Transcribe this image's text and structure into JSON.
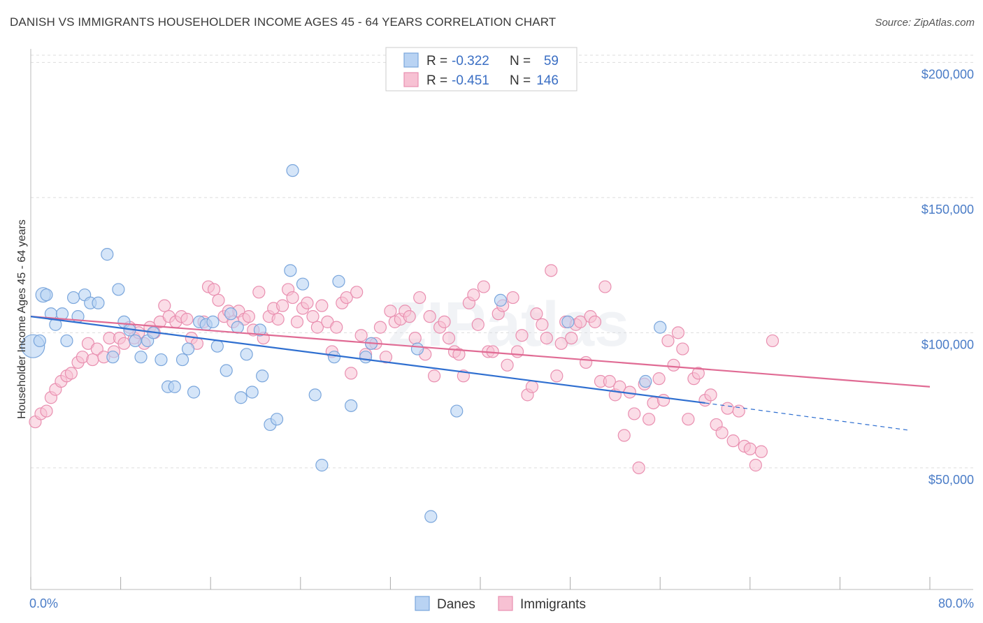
{
  "title": "DANISH VS IMMIGRANTS HOUSEHOLDER INCOME AGES 45 - 64 YEARS CORRELATION CHART",
  "source": "Source: ZipAtlas.com",
  "watermark": "ZIPatlas",
  "legend_top": {
    "rows": [
      {
        "r_label": "R =",
        "r_value": "-0.322",
        "n_label": "N =",
        "n_value": "59"
      },
      {
        "r_label": "R =",
        "r_value": "-0.451",
        "n_label": "N =",
        "n_value": "146"
      }
    ]
  },
  "legend_bottom": [
    "Danes",
    "Immigrants"
  ],
  "colors": {
    "danes_fill": "#b9d3f3",
    "danes_stroke": "#7aa6dc",
    "danes_line": "#2f6fd0",
    "imm_fill": "#f7c1d3",
    "imm_stroke": "#e98fb0",
    "imm_line": "#e06b94",
    "axis_text": "#4a7cc7",
    "grid": "#dddddd"
  },
  "chart_data": {
    "type": "scatter",
    "title": "DANISH VS IMMIGRANTS HOUSEHOLDER INCOME AGES 45 - 64 YEARS CORRELATION CHART",
    "xlabel": "",
    "ylabel": "Householder Income Ages 45 - 64 years",
    "xlim": [
      0,
      80
    ],
    "ylim": [
      5000,
      205000
    ],
    "x_tick_labels": [
      "0.0%",
      "80.0%"
    ],
    "y_ticks": [
      50000,
      100000,
      150000,
      200000
    ],
    "y_tick_labels": [
      "$50,000",
      "$100,000",
      "$150,000",
      "$200,000"
    ],
    "grid": true,
    "legend_position": "top-center",
    "series": [
      {
        "name": "Danes",
        "r": -0.322,
        "n": 59,
        "trend": {
          "x0": 0,
          "y0": 106000,
          "x1": 60,
          "y1": 74000,
          "dashed_to_x": 78,
          "dashed_to_y": 64000
        },
        "points": [
          [
            0.2,
            95000,
            16
          ],
          [
            1.1,
            114000,
            10
          ],
          [
            1.4,
            114000,
            8
          ],
          [
            1.8,
            107000,
            8
          ],
          [
            2.2,
            103000,
            8
          ],
          [
            2.8,
            107000,
            8
          ],
          [
            3.2,
            97000,
            8
          ],
          [
            3.8,
            113000,
            8
          ],
          [
            4.2,
            106000,
            8
          ],
          [
            4.8,
            114000,
            8
          ],
          [
            5.3,
            111000,
            8
          ],
          [
            6.0,
            111000,
            8
          ],
          [
            6.8,
            129000,
            8
          ],
          [
            7.3,
            91000,
            8
          ],
          [
            7.8,
            116000,
            8
          ],
          [
            8.3,
            104000,
            8
          ],
          [
            8.8,
            101000,
            8
          ],
          [
            9.3,
            97000,
            8
          ],
          [
            9.8,
            91000,
            8
          ],
          [
            10.4,
            97000,
            8
          ],
          [
            10.9,
            100000,
            8
          ],
          [
            11.6,
            90000,
            8
          ],
          [
            12.2,
            80000,
            8
          ],
          [
            12.8,
            80000,
            8
          ],
          [
            13.5,
            90000,
            8
          ],
          [
            14.0,
            94000,
            8
          ],
          [
            14.5,
            78000,
            8
          ],
          [
            15.0,
            104000,
            8
          ],
          [
            15.6,
            103000,
            8
          ],
          [
            16.2,
            104000,
            8
          ],
          [
            16.6,
            95000,
            8
          ],
          [
            17.4,
            86000,
            8
          ],
          [
            17.8,
            107000,
            8
          ],
          [
            18.4,
            102000,
            8
          ],
          [
            18.7,
            76000,
            8
          ],
          [
            19.2,
            92000,
            8
          ],
          [
            19.7,
            78000,
            8
          ],
          [
            20.4,
            101000,
            8
          ],
          [
            20.6,
            84000,
            8
          ],
          [
            21.3,
            66000,
            8
          ],
          [
            21.9,
            68000,
            8
          ],
          [
            23.1,
            123000,
            8
          ],
          [
            23.3,
            160000,
            8
          ],
          [
            24.2,
            118000,
            8
          ],
          [
            25.3,
            77000,
            8
          ],
          [
            25.9,
            51000,
            8
          ],
          [
            27.0,
            91000,
            8
          ],
          [
            27.4,
            119000,
            8
          ],
          [
            28.5,
            73000,
            8
          ],
          [
            29.8,
            91000,
            8
          ],
          [
            30.3,
            96000,
            8
          ],
          [
            34.4,
            94000,
            8
          ],
          [
            35.6,
            32000,
            8
          ],
          [
            37.9,
            71000,
            8
          ],
          [
            41.8,
            112000,
            8
          ],
          [
            47.8,
            104000,
            8
          ],
          [
            54.7,
            82000,
            8
          ],
          [
            56.0,
            102000,
            8
          ],
          [
            0.8,
            97000,
            8
          ]
        ]
      },
      {
        "name": "Immigrants",
        "r": -0.451,
        "n": 146,
        "trend": {
          "x0": 0,
          "y0": 106000,
          "x1": 80,
          "y1": 80000
        },
        "points": [
          [
            0.4,
            67000
          ],
          [
            0.9,
            70000
          ],
          [
            1.4,
            71000
          ],
          [
            1.8,
            76000
          ],
          [
            2.2,
            79000
          ],
          [
            2.7,
            82000
          ],
          [
            3.2,
            84000
          ],
          [
            3.6,
            85000
          ],
          [
            4.2,
            89000
          ],
          [
            4.6,
            91000
          ],
          [
            5.1,
            96000
          ],
          [
            5.5,
            90000
          ],
          [
            5.9,
            94000
          ],
          [
            6.5,
            91000
          ],
          [
            7.0,
            98000
          ],
          [
            7.4,
            93000
          ],
          [
            7.9,
            98000
          ],
          [
            8.3,
            96000
          ],
          [
            8.8,
            102000
          ],
          [
            9.2,
            98000
          ],
          [
            9.6,
            100000
          ],
          [
            10.1,
            96000
          ],
          [
            10.6,
            102000
          ],
          [
            11.0,
            100000
          ],
          [
            11.5,
            104000
          ],
          [
            11.9,
            110000
          ],
          [
            12.3,
            106000
          ],
          [
            12.9,
            104000
          ],
          [
            13.4,
            106000
          ],
          [
            13.9,
            105000
          ],
          [
            14.3,
            98000
          ],
          [
            14.8,
            96000
          ],
          [
            15.4,
            104000
          ],
          [
            15.8,
            117000
          ],
          [
            16.3,
            116000
          ],
          [
            16.7,
            112000
          ],
          [
            17.2,
            106000
          ],
          [
            17.6,
            108000
          ],
          [
            18.0,
            104000
          ],
          [
            18.5,
            108000
          ],
          [
            19.0,
            105000
          ],
          [
            19.4,
            106000
          ],
          [
            19.8,
            101000
          ],
          [
            20.3,
            115000
          ],
          [
            20.7,
            98000
          ],
          [
            21.2,
            106000
          ],
          [
            21.6,
            109000
          ],
          [
            22.0,
            105000
          ],
          [
            22.4,
            110000
          ],
          [
            22.9,
            116000
          ],
          [
            23.3,
            113000
          ],
          [
            23.7,
            104000
          ],
          [
            24.2,
            109000
          ],
          [
            24.6,
            111000
          ],
          [
            25.1,
            106000
          ],
          [
            25.5,
            102000
          ],
          [
            25.9,
            110000
          ],
          [
            26.4,
            104000
          ],
          [
            26.8,
            93000
          ],
          [
            27.2,
            102000
          ],
          [
            27.7,
            111000
          ],
          [
            28.1,
            113000
          ],
          [
            28.5,
            85000
          ],
          [
            29.0,
            115000
          ],
          [
            29.4,
            99000
          ],
          [
            29.8,
            92000
          ],
          [
            30.3,
            96000
          ],
          [
            30.7,
            96000
          ],
          [
            31.1,
            102000
          ],
          [
            31.6,
            91000
          ],
          [
            32.0,
            108000
          ],
          [
            32.4,
            104000
          ],
          [
            32.9,
            105000
          ],
          [
            33.3,
            108000
          ],
          [
            33.7,
            106000
          ],
          [
            34.2,
            98000
          ],
          [
            34.6,
            113000
          ],
          [
            35.1,
            92000
          ],
          [
            35.5,
            106000
          ],
          [
            35.9,
            84000
          ],
          [
            36.4,
            102000
          ],
          [
            36.8,
            104000
          ],
          [
            37.2,
            98000
          ],
          [
            37.7,
            93000
          ],
          [
            38.1,
            92000
          ],
          [
            38.5,
            84000
          ],
          [
            39.0,
            111000
          ],
          [
            39.4,
            114000
          ],
          [
            39.8,
            103000
          ],
          [
            40.3,
            117000
          ],
          [
            40.7,
            93000
          ],
          [
            41.1,
            93000
          ],
          [
            41.6,
            107000
          ],
          [
            42.0,
            110000
          ],
          [
            42.4,
            88000
          ],
          [
            42.9,
            113000
          ],
          [
            43.3,
            93000
          ],
          [
            43.7,
            99000
          ],
          [
            44.2,
            77000
          ],
          [
            44.6,
            80000
          ],
          [
            45.0,
            107000
          ],
          [
            45.5,
            103000
          ],
          [
            45.9,
            98000
          ],
          [
            46.3,
            123000
          ],
          [
            46.8,
            84000
          ],
          [
            47.2,
            96000
          ],
          [
            47.6,
            104000
          ],
          [
            48.1,
            98000
          ],
          [
            48.5,
            103000
          ],
          [
            48.9,
            104000
          ],
          [
            49.4,
            89000
          ],
          [
            49.8,
            106000
          ],
          [
            50.2,
            104000
          ],
          [
            50.7,
            82000
          ],
          [
            51.1,
            117000
          ],
          [
            51.5,
            82000
          ],
          [
            52.0,
            77000
          ],
          [
            52.4,
            80000
          ],
          [
            52.8,
            62000
          ],
          [
            53.3,
            78000
          ],
          [
            53.7,
            70000
          ],
          [
            54.1,
            50000
          ],
          [
            54.6,
            81000
          ],
          [
            55.0,
            68000
          ],
          [
            55.4,
            74000
          ],
          [
            55.9,
            83000
          ],
          [
            56.3,
            75000
          ],
          [
            56.7,
            97000
          ],
          [
            57.2,
            88000
          ],
          [
            57.6,
            100000
          ],
          [
            58.0,
            94000
          ],
          [
            58.5,
            68000
          ],
          [
            59.0,
            83000
          ],
          [
            59.4,
            85000
          ],
          [
            60.0,
            75000
          ],
          [
            60.5,
            77000
          ],
          [
            61.0,
            66000
          ],
          [
            61.5,
            63000
          ],
          [
            62.0,
            72000
          ],
          [
            62.5,
            60000
          ],
          [
            63.0,
            71000
          ],
          [
            63.5,
            58000
          ],
          [
            64.0,
            57000
          ],
          [
            64.5,
            51000
          ],
          [
            65.0,
            56000
          ],
          [
            66.0,
            97000
          ]
        ]
      }
    ]
  }
}
